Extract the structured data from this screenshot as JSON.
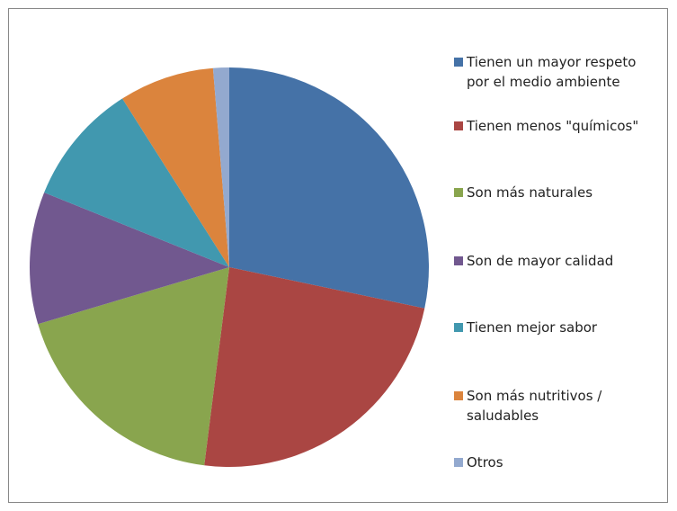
{
  "chart_data": {
    "type": "pie",
    "categories": [
      "Tienen un mayor respeto por el medio ambiente",
      "Tienen menos \"químicos\"",
      "Son más naturales",
      "Son de mayor calidad",
      "Tienen mejor sabor",
      "Son más nutritivos / saludables",
      "Otros"
    ],
    "values": [
      28.3,
      23.7,
      18.4,
      10.7,
      9.9,
      7.7,
      1.3
    ],
    "colors": [
      "#4572a7",
      "#aa4643",
      "#89a54e",
      "#71588f",
      "#4198af",
      "#db843d",
      "#93a9cf"
    ],
    "legend": "right"
  }
}
